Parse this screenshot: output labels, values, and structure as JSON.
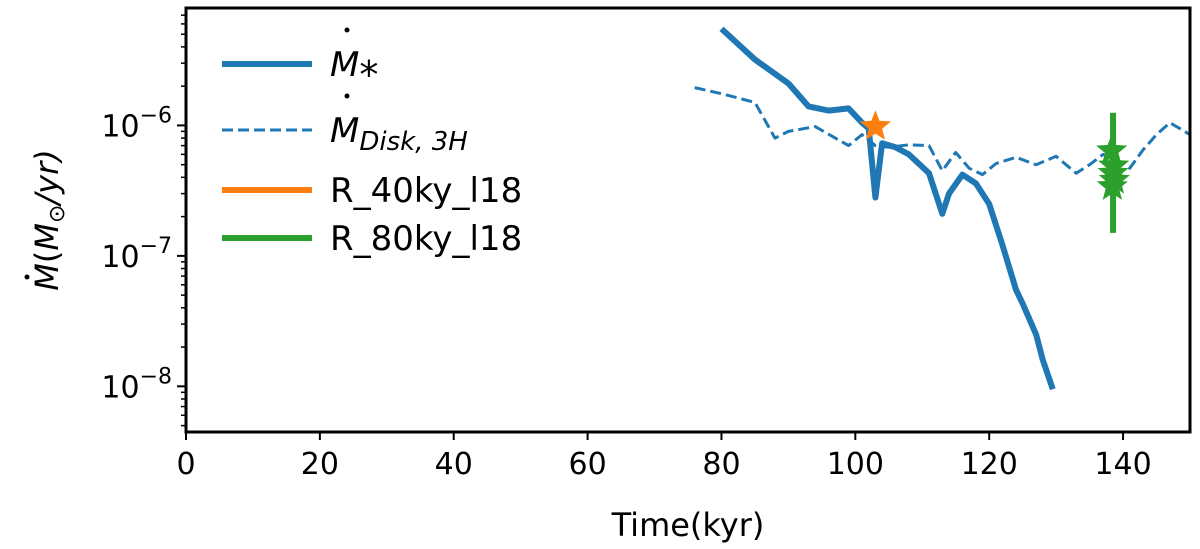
{
  "chart_data": {
    "type": "line",
    "xlabel": "Time(kyr)",
    "ylabel_parts": {
      "symbol": "M",
      "open": "(",
      "unit": "M",
      "sub": "⊙",
      "rest": "/yr)"
    },
    "xlim": [
      0,
      150
    ],
    "ylim_log10": [
      -8.35,
      -5.1
    ],
    "x_ticks": [
      0,
      20,
      40,
      60,
      80,
      100,
      120,
      140
    ],
    "x_tick_labels": [
      "0",
      "20",
      "40",
      "60",
      "80",
      "100",
      "120",
      "140"
    ],
    "y_ticks_log10": [
      -8,
      -7,
      -6
    ],
    "y_tick_labels": [
      {
        "base": "10",
        "exp": "−8"
      },
      {
        "base": "10",
        "exp": "−7"
      },
      {
        "base": "10",
        "exp": "−6"
      }
    ],
    "legend_position": "upper-left",
    "series": [
      {
        "id": "mdot-star",
        "name_main": "M",
        "name_sub": "*",
        "color": "#1f77b4",
        "style": "solid",
        "x": [
          80,
          85,
          90,
          93,
          96,
          99,
          101,
          102,
          103,
          104,
          106,
          108,
          111,
          113,
          114,
          116,
          118,
          120,
          122,
          124,
          125,
          127,
          128,
          129.5
        ],
        "y": [
          5.5e-06,
          3.2e-06,
          2.1e-06,
          1.4e-06,
          1.3e-06,
          1.35e-06,
          1.05e-06,
          9.5e-07,
          2.8e-07,
          7.3e-07,
          6.8e-07,
          6e-07,
          4.3e-07,
          2.1e-07,
          3e-07,
          4.2e-07,
          3.6e-07,
          2.5e-07,
          1.2e-07,
          5.5e-08,
          4.3e-08,
          2.5e-08,
          1.6e-08,
          9.5e-09
        ]
      },
      {
        "id": "mdot-disk",
        "name_main": "M",
        "name_sub": "Disk, 3H",
        "color": "#1f77b4",
        "style": "dashed",
        "x": [
          76,
          80,
          85,
          88,
          90,
          94,
          97,
          99,
          101,
          103,
          105,
          108,
          111,
          113,
          115,
          117,
          119,
          121,
          124,
          127,
          130,
          133,
          135,
          137,
          139,
          141,
          143,
          145,
          147,
          150
        ],
        "y": [
          1.95e-06,
          1.75e-06,
          1.5e-06,
          8e-07,
          9e-07,
          9.8e-07,
          8e-07,
          7e-07,
          8.5e-07,
          7e-07,
          6.8e-07,
          7.1e-07,
          7e-07,
          4.5e-07,
          6.2e-07,
          4.7e-07,
          4.2e-07,
          5.1e-07,
          5.7e-07,
          5e-07,
          5.8e-07,
          4.3e-07,
          5e-07,
          6e-07,
          5.5e-07,
          4.7e-07,
          6.5e-07,
          8.5e-07,
          1.05e-06,
          8.5e-07
        ]
      }
    ],
    "markers": [
      {
        "id": "r40",
        "name": "R_40ky_l18",
        "color": "#ff7f0e",
        "points": [
          {
            "x": 103,
            "y": 9.8e-07
          }
        ],
        "error_bar": null
      },
      {
        "id": "r80",
        "name": "R_80ky_l18",
        "color": "#2ca02c",
        "points": [
          {
            "x": 138.3,
            "y": 6.4e-07
          },
          {
            "x": 138.6,
            "y": 4.9e-07
          },
          {
            "x": 138.5,
            "y": 4.3e-07
          },
          {
            "x": 138.7,
            "y": 3.8e-07
          },
          {
            "x": 138.4,
            "y": 3.4e-07
          }
        ],
        "error_bar": {
          "x": 138.5,
          "y_low": 1.5e-07,
          "y_high": 1.25e-06
        }
      }
    ]
  }
}
